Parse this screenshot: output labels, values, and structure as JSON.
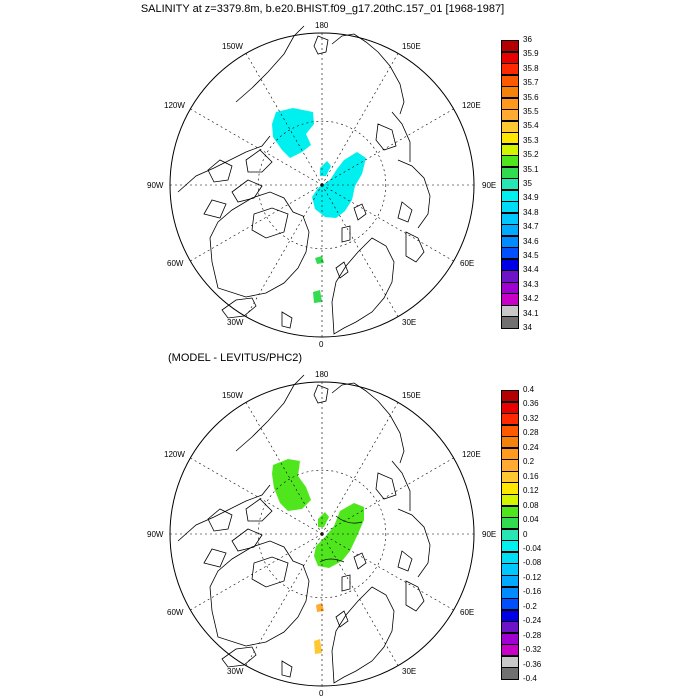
{
  "title": "SALINITY at z=3379.8m, b.e20.BHIST.f09_g17.20thC.157_01 [1968-1987]",
  "subtitle": "(MODEL - LEVITUS/PHC2)",
  "lon_labels": {
    "top": "180",
    "bottom": "0",
    "left": "90W",
    "right": "90E",
    "upper_left_1": "150W",
    "upper_left_2": "120W",
    "upper_right_1": "150E",
    "upper_right_2": "120E",
    "lower_left_1": "60W",
    "lower_left_2": "30W",
    "lower_right_1": "60E",
    "lower_right_2": "30E"
  },
  "colorbar_top": {
    "colors": [
      "#b30000",
      "#e60000",
      "#ff2a00",
      "#ff5a00",
      "#f5820a",
      "#ff9a1e",
      "#ffaa32",
      "#ffc832",
      "#ffe600",
      "#d2f500",
      "#50e61e",
      "#32dc50",
      "#28e6b4",
      "#00f0f0",
      "#00dcf5",
      "#00c8ff",
      "#00aaff",
      "#008cff",
      "#0050ff",
      "#0000e6",
      "#6e14c8",
      "#a000d2",
      "#c800c8",
      "#c8c8c8",
      "#707070"
    ],
    "labels": [
      "36",
      "35.9",
      "35.8",
      "35.7",
      "35.6",
      "35.5",
      "35.4",
      "35.3",
      "35.2",
      "35.1",
      "35",
      "34.9",
      "34.8",
      "34.7",
      "34.6",
      "34.5",
      "34.4",
      "34.3",
      "34.2",
      "34.1",
      "34"
    ]
  },
  "colorbar_bottom": {
    "colors": [
      "#b30000",
      "#e60000",
      "#ff2a00",
      "#ff5a00",
      "#f5820a",
      "#ff9a1e",
      "#ffaa32",
      "#ffc832",
      "#ffe600",
      "#d2f500",
      "#50e61e",
      "#32dc50",
      "#28e6b4",
      "#00f0f0",
      "#00dcf5",
      "#00c8ff",
      "#00aaff",
      "#008cff",
      "#0050ff",
      "#0000e6",
      "#6e14c8",
      "#a000d2",
      "#c800c8",
      "#c8c8c8",
      "#707070"
    ],
    "labels": [
      "0.4",
      "0.36",
      "0.32",
      "0.28",
      "0.24",
      "0.2",
      "0.16",
      "0.12",
      "0.08",
      "0.04",
      "0",
      "-0.04",
      "-0.08",
      "-0.12",
      "-0.16",
      "-0.2",
      "-0.24",
      "-0.28",
      "-0.32",
      "-0.36",
      "-0.4"
    ]
  },
  "field_colors": {
    "top_basin": "#00f0f0",
    "top_patch": "#32dc50",
    "bottom_basin": "#50e61e",
    "bottom_orange": "#ffaa32",
    "bottom_yellow": "#ffc832"
  }
}
